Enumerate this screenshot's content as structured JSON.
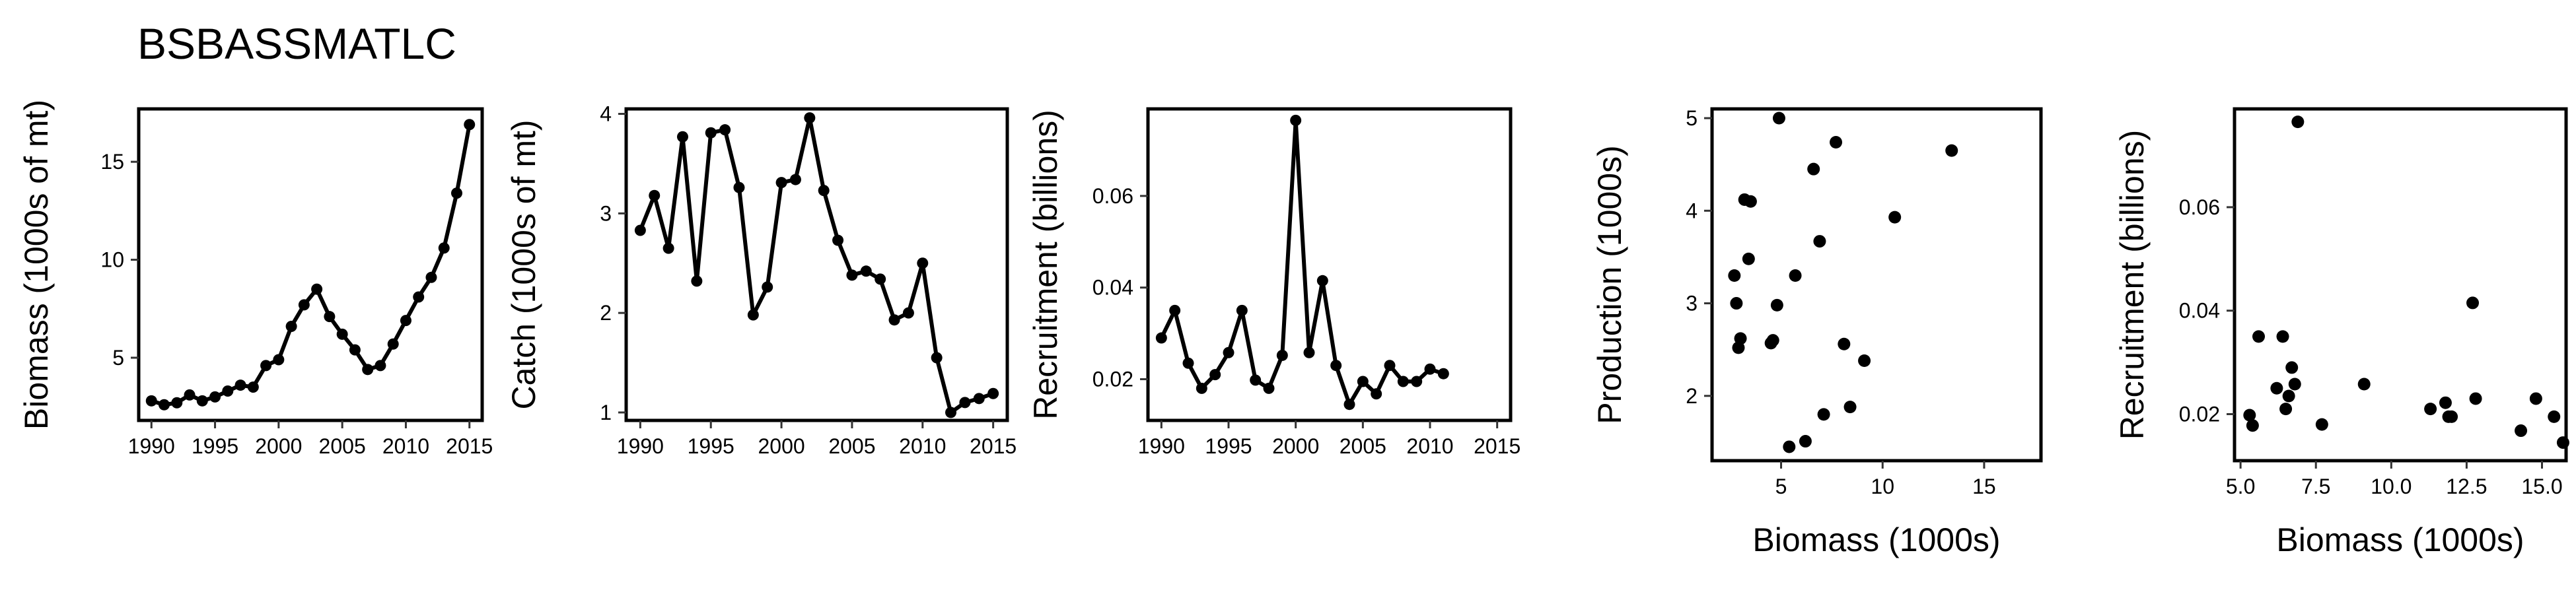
{
  "figure": {
    "title": "BSBASSMATLC"
  },
  "chart_data": [
    {
      "type": "line",
      "xlabel": "",
      "ylabel": "Biomass (1000s of mt)",
      "xlim": [
        1989,
        2016
      ],
      "ylim": [
        1.8,
        17.7
      ],
      "xticks": [
        1990,
        1995,
        2000,
        2005,
        2010,
        2015
      ],
      "yticks": [
        5,
        10,
        15
      ],
      "grid": false,
      "x": [
        1990,
        1991,
        1992,
        1993,
        1994,
        1995,
        1996,
        1997,
        1998,
        1999,
        2000,
        2001,
        2002,
        2003,
        2004,
        2005,
        2006,
        2007,
        2008,
        2009,
        2010,
        2011,
        2012,
        2013,
        2014,
        2015
      ],
      "y": [
        2.8,
        2.6,
        2.7,
        3.1,
        2.8,
        3.0,
        3.3,
        3.6,
        3.5,
        4.6,
        4.9,
        6.6,
        7.7,
        8.5,
        7.1,
        6.2,
        5.4,
        4.4,
        4.6,
        5.7,
        6.9,
        8.1,
        9.1,
        10.6,
        13.4,
        16.9
      ]
    },
    {
      "type": "line",
      "xlabel": "",
      "ylabel": "Catch (1000s of mt)",
      "xlim": [
        1989,
        2016
      ],
      "ylim": [
        0.92,
        4.05
      ],
      "xticks": [
        1990,
        1995,
        2000,
        2005,
        2010,
        2015
      ],
      "yticks": [
        1,
        2,
        3,
        4
      ],
      "grid": false,
      "x": [
        1990,
        1991,
        1992,
        1993,
        1994,
        1995,
        1996,
        1997,
        1998,
        1999,
        2000,
        2001,
        2002,
        2003,
        2004,
        2005,
        2006,
        2007,
        2008,
        2009,
        2010,
        2011,
        2012,
        2013,
        2014,
        2015
      ],
      "y": [
        2.83,
        3.18,
        2.65,
        3.77,
        2.32,
        3.81,
        3.84,
        3.26,
        1.98,
        2.26,
        3.31,
        3.34,
        3.96,
        3.23,
        2.73,
        2.38,
        2.42,
        2.34,
        1.93,
        2.0,
        2.5,
        1.55,
        1.0,
        1.1,
        1.14,
        1.19
      ]
    },
    {
      "type": "line",
      "xlabel": "",
      "ylabel": "Recruitment (billions)",
      "xlim": [
        1989,
        2016
      ],
      "ylim": [
        0.011,
        0.079
      ],
      "xticks": [
        1990,
        1995,
        2000,
        2005,
        2010,
        2015
      ],
      "yticks": [
        0.02,
        0.04,
        0.06
      ],
      "grid": false,
      "x": [
        1990,
        1991,
        1992,
        1993,
        1994,
        1995,
        1996,
        1997,
        1998,
        1999,
        2000,
        2001,
        2002,
        2003,
        2004,
        2005,
        2006,
        2007,
        2008,
        2009,
        2010,
        2011
      ],
      "y": [
        0.029,
        0.035,
        0.0235,
        0.018,
        0.021,
        0.0258,
        0.035,
        0.0198,
        0.018,
        0.0252,
        0.0765,
        0.0258,
        0.0415,
        0.023,
        0.0145,
        0.0195,
        0.0168,
        0.023,
        0.0195,
        0.0195,
        0.0222,
        0.0212
      ]
    },
    {
      "type": "scatter",
      "xlabel": "Biomass (1000s)",
      "ylabel": "Production (1000s)",
      "xlim": [
        1.6,
        17.8
      ],
      "ylim": [
        1.3,
        5.1
      ],
      "xticks": [
        5,
        10,
        15
      ],
      "yticks": [
        2,
        3,
        4,
        5
      ],
      "grid": false,
      "x": [
        2.7,
        2.8,
        2.9,
        3.0,
        3.2,
        3.4,
        3.5,
        4.5,
        4.6,
        4.8,
        4.9,
        5.4,
        5.7,
        6.2,
        6.6,
        6.9,
        7.1,
        7.7,
        8.1,
        8.4,
        9.1,
        10.6,
        13.4
      ],
      "y": [
        3.3,
        3.0,
        2.52,
        2.62,
        4.12,
        3.48,
        4.1,
        2.57,
        2.6,
        2.98,
        5.0,
        1.45,
        3.3,
        1.51,
        4.45,
        3.67,
        1.8,
        4.74,
        2.56,
        1.88,
        2.38,
        3.93,
        4.65
      ]
    },
    {
      "type": "scatter",
      "xlabel": "Biomass (1000s)",
      "ylabel": "Recruitment (billions)",
      "xlim": [
        4.8,
        15.8
      ],
      "ylim": [
        0.011,
        0.079
      ],
      "xticks": [
        5.0,
        7.5,
        10.0,
        12.5,
        15.0
      ],
      "ytick_labels": [
        "0.02",
        "0.04",
        "0.06"
      ],
      "xtick_labels": [
        "5.0",
        "7.5",
        "10.0",
        "12.5",
        "15.0"
      ],
      "yticks": [
        0.02,
        0.04,
        0.06
      ],
      "grid": false,
      "x": [
        5.3,
        5.4,
        5.6,
        6.2,
        6.4,
        6.5,
        6.6,
        6.7,
        6.8,
        6.9,
        7.7,
        9.1,
        11.3,
        11.8,
        11.9,
        12.0,
        12.7,
        12.8,
        14.3,
        14.8,
        15.4,
        15.7
      ],
      "y": [
        0.0198,
        0.0178,
        0.035,
        0.025,
        0.035,
        0.021,
        0.0235,
        0.029,
        0.0258,
        0.0765,
        0.018,
        0.0258,
        0.021,
        0.0222,
        0.0195,
        0.0195,
        0.0415,
        0.023,
        0.0168,
        0.023,
        0.0195,
        0.0145
      ]
    }
  ]
}
